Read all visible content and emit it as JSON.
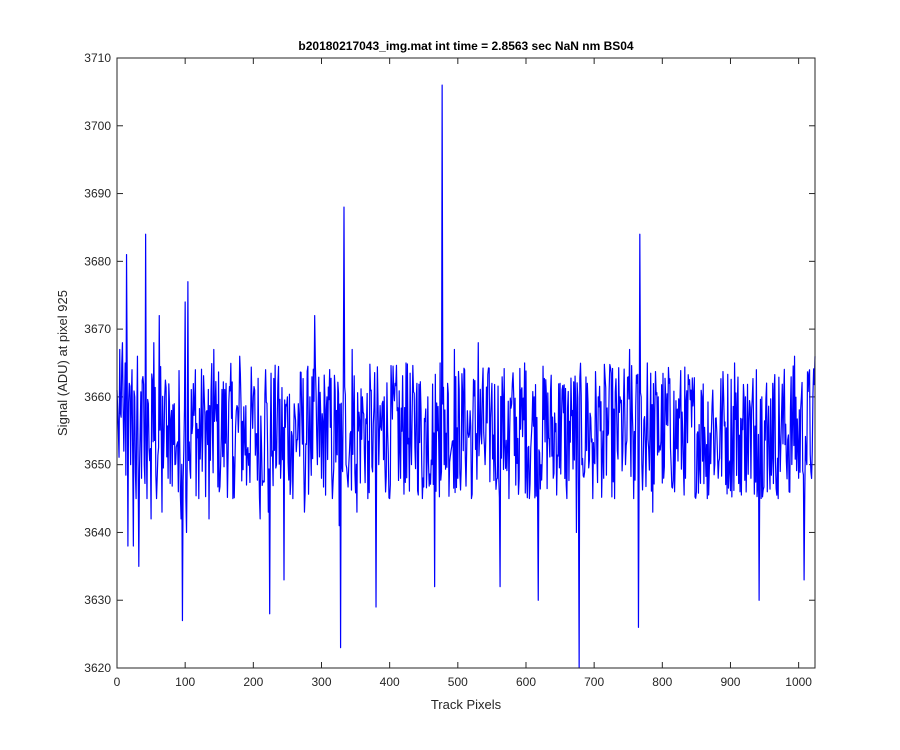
{
  "chart_data": {
    "type": "line",
    "title": "b20180217043_img.mat int time = 2.8563 sec  NaN nm BS04",
    "xlabel": "Track Pixels",
    "ylabel": "Signal (ADU) at pixel 925",
    "xlim": [
      0,
      1024
    ],
    "ylim": [
      3620,
      3710
    ],
    "xticks": [
      0,
      100,
      200,
      300,
      400,
      500,
      600,
      700,
      800,
      900,
      1000
    ],
    "yticks": [
      3620,
      3630,
      3640,
      3650,
      3660,
      3670,
      3680,
      3690,
      3700,
      3710
    ],
    "grid": false,
    "line_color": "#0000ff",
    "series": [
      {
        "name": "",
        "anchor_points": [
          [
            0,
            3661
          ],
          [
            2,
            3655
          ],
          [
            4,
            3667
          ],
          [
            6,
            3657
          ],
          [
            8,
            3668
          ],
          [
            10,
            3652
          ],
          [
            12,
            3665
          ],
          [
            14,
            3681
          ],
          [
            16,
            3638
          ],
          [
            18,
            3662
          ],
          [
            20,
            3650
          ],
          [
            22,
            3664
          ],
          [
            24,
            3638
          ],
          [
            26,
            3660
          ],
          [
            28,
            3645
          ],
          [
            30,
            3666
          ],
          [
            32,
            3635
          ],
          [
            34,
            3655
          ],
          [
            36,
            3648
          ],
          [
            38,
            3663
          ],
          [
            40,
            3650
          ],
          [
            42,
            3684
          ],
          [
            44,
            3645
          ],
          [
            46,
            3659
          ],
          [
            50,
            3642
          ],
          [
            54,
            3668
          ],
          [
            58,
            3645
          ],
          [
            62,
            3672
          ],
          [
            66,
            3643
          ],
          [
            70,
            3660
          ],
          [
            75,
            3648
          ],
          [
            80,
            3658
          ],
          [
            85,
            3650
          ],
          [
            90,
            3646
          ],
          [
            94,
            3642
          ],
          [
            96,
            3627
          ],
          [
            98,
            3652
          ],
          [
            100,
            3674
          ],
          [
            102,
            3640
          ],
          [
            104,
            3677
          ],
          [
            108,
            3648
          ],
          [
            115,
            3664
          ],
          [
            120,
            3645
          ],
          [
            128,
            3660
          ],
          [
            135,
            3642
          ],
          [
            142,
            3667
          ],
          [
            150,
            3646
          ],
          [
            160,
            3662
          ],
          [
            170,
            3645
          ],
          [
            180,
            3666
          ],
          [
            190,
            3647
          ],
          [
            200,
            3660
          ],
          [
            210,
            3642
          ],
          [
            218,
            3664
          ],
          [
            222,
            3643
          ],
          [
            224,
            3628
          ],
          [
            228,
            3652
          ],
          [
            236,
            3662
          ],
          [
            240,
            3648
          ],
          [
            245,
            3633
          ],
          [
            250,
            3660
          ],
          [
            258,
            3645
          ],
          [
            266,
            3659
          ],
          [
            275,
            3643
          ],
          [
            283,
            3660
          ],
          [
            290,
            3672
          ],
          [
            294,
            3650
          ],
          [
            300,
            3648
          ],
          [
            308,
            3660
          ],
          [
            316,
            3645
          ],
          [
            322,
            3658
          ],
          [
            326,
            3641
          ],
          [
            328,
            3623
          ],
          [
            330,
            3650
          ],
          [
            333,
            3688
          ],
          [
            336,
            3650
          ],
          [
            345,
            3667
          ],
          [
            352,
            3643
          ],
          [
            360,
            3660
          ],
          [
            368,
            3645
          ],
          [
            376,
            3656
          ],
          [
            380,
            3629
          ],
          [
            384,
            3650
          ],
          [
            392,
            3660
          ],
          [
            400,
            3645
          ],
          [
            408,
            3662
          ],
          [
            416,
            3648
          ],
          [
            424,
            3665
          ],
          [
            432,
            3650
          ],
          [
            440,
            3662
          ],
          [
            448,
            3645
          ],
          [
            456,
            3660
          ],
          [
            462,
            3650
          ],
          [
            466,
            3632
          ],
          [
            470,
            3655
          ],
          [
            474,
            3665
          ],
          [
            477,
            3706
          ],
          [
            480,
            3650
          ],
          [
            485,
            3662
          ],
          [
            490,
            3652
          ],
          [
            495,
            3667
          ],
          [
            500,
            3648
          ],
          [
            510,
            3664
          ],
          [
            520,
            3645
          ],
          [
            530,
            3668
          ],
          [
            540,
            3650
          ],
          [
            550,
            3662
          ],
          [
            558,
            3648
          ],
          [
            562,
            3632
          ],
          [
            566,
            3660
          ],
          [
            575,
            3645
          ],
          [
            580,
            3662
          ],
          [
            590,
            3648
          ],
          [
            598,
            3665
          ],
          [
            605,
            3645
          ],
          [
            612,
            3660
          ],
          [
            618,
            3630
          ],
          [
            622,
            3650
          ],
          [
            630,
            3660
          ],
          [
            640,
            3648
          ],
          [
            650,
            3662
          ],
          [
            660,
            3645
          ],
          [
            668,
            3658
          ],
          [
            674,
            3640
          ],
          [
            678,
            3620
          ],
          [
            682,
            3650
          ],
          [
            690,
            3662
          ],
          [
            698,
            3645
          ],
          [
            706,
            3660
          ],
          [
            714,
            3648
          ],
          [
            722,
            3661
          ],
          [
            730,
            3645
          ],
          [
            738,
            3660
          ],
          [
            746,
            3650
          ],
          [
            752,
            3667
          ],
          [
            758,
            3645
          ],
          [
            763,
            3662
          ],
          [
            765,
            3626
          ],
          [
            767,
            3684
          ],
          [
            770,
            3650
          ],
          [
            778,
            3665
          ],
          [
            786,
            3643
          ],
          [
            794,
            3660
          ],
          [
            802,
            3648
          ],
          [
            810,
            3662
          ],
          [
            818,
            3646
          ],
          [
            826,
            3660
          ],
          [
            834,
            3648
          ],
          [
            842,
            3661
          ],
          [
            850,
            3646
          ],
          [
            858,
            3660
          ],
          [
            866,
            3645
          ],
          [
            874,
            3661
          ],
          [
            882,
            3648
          ],
          [
            890,
            3660
          ],
          [
            898,
            3650
          ],
          [
            906,
            3665
          ],
          [
            914,
            3646
          ],
          [
            922,
            3660
          ],
          [
            930,
            3648
          ],
          [
            938,
            3664
          ],
          [
            942,
            3630
          ],
          [
            946,
            3660
          ],
          [
            954,
            3646
          ],
          [
            962,
            3662
          ],
          [
            970,
            3645
          ],
          [
            978,
            3660
          ],
          [
            986,
            3646
          ],
          [
            994,
            3666
          ],
          [
            1000,
            3648
          ],
          [
            1004,
            3660
          ],
          [
            1008,
            3633
          ],
          [
            1012,
            3650
          ],
          [
            1016,
            3664
          ],
          [
            1020,
            3652
          ],
          [
            1024,
            3666
          ]
        ]
      }
    ]
  }
}
